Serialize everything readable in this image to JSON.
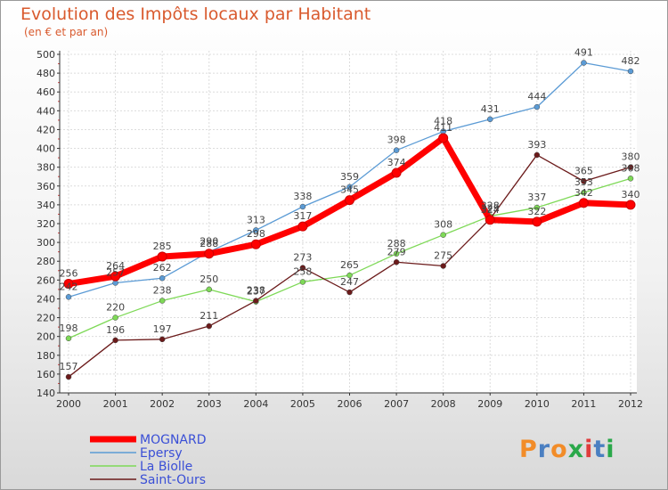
{
  "chart_data": {
    "type": "line",
    "title": "Evolution des Impôts locaux par Habitant",
    "subtitle": "(en € et par an)",
    "xlabel": "",
    "ylabel": "",
    "x": [
      "2000",
      "2001",
      "2002",
      "2003",
      "2004",
      "2005",
      "2006",
      "2007",
      "2008",
      "2009",
      "2010",
      "2011",
      "2012"
    ],
    "ylim": [
      140,
      500
    ],
    "yticks": [
      "140",
      "160",
      "180",
      "200",
      "220",
      "240",
      "260",
      "280",
      "300",
      "320",
      "340",
      "360",
      "380",
      "400",
      "420",
      "440",
      "460",
      "480",
      "500"
    ],
    "grid": true,
    "legend_position": "bottom-left",
    "series": [
      {
        "name": "MOGNARD",
        "color": "#ff0000",
        "values": [
          256,
          264,
          285,
          288,
          298,
          317,
          345,
          374,
          411,
          324,
          322,
          342,
          340
        ]
      },
      {
        "name": "Epersy",
        "color": "#5b9bd5",
        "values": [
          242,
          257,
          262,
          290,
          313,
          338,
          359,
          398,
          418,
          431,
          444,
          491,
          482
        ]
      },
      {
        "name": "La Biolle",
        "color": "#7ed957",
        "values": [
          198,
          220,
          238,
          250,
          237,
          258,
          265,
          288,
          308,
          328,
          337,
          353,
          368
        ]
      },
      {
        "name": "Saint-Ours",
        "color": "#6b1a1a",
        "values": [
          157,
          196,
          197,
          211,
          238,
          273,
          247,
          279,
          275,
          325,
          393,
          365,
          380
        ]
      }
    ]
  },
  "logo": {
    "text": "Proxiti",
    "colors": [
      "#f28c28",
      "#4a7fc1",
      "#f28c28",
      "#2aa84a",
      "#e03c3c",
      "#4a7fc1",
      "#2aa84a"
    ]
  }
}
